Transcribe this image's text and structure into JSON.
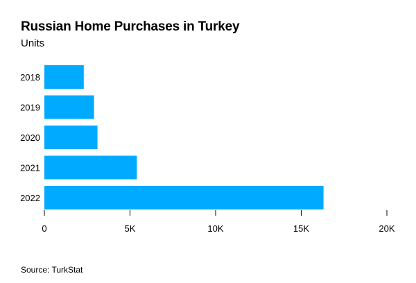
{
  "chart_data": {
    "type": "bar",
    "orientation": "horizontal",
    "title": "Russian Home Purchases in Turkey",
    "subtitle": "Units",
    "categories": [
      "2018",
      "2019",
      "2020",
      "2021",
      "2022"
    ],
    "values": [
      2300,
      2900,
      3100,
      5400,
      16300
    ],
    "xlim": [
      0,
      20000
    ],
    "xticks": [
      0,
      5000,
      10000,
      15000,
      20000
    ],
    "xtick_labels": [
      "0",
      "5K",
      "10K",
      "15K",
      "20K"
    ],
    "bar_color": "#00aaff",
    "grid": false,
    "source": "Source: TurkStat"
  }
}
